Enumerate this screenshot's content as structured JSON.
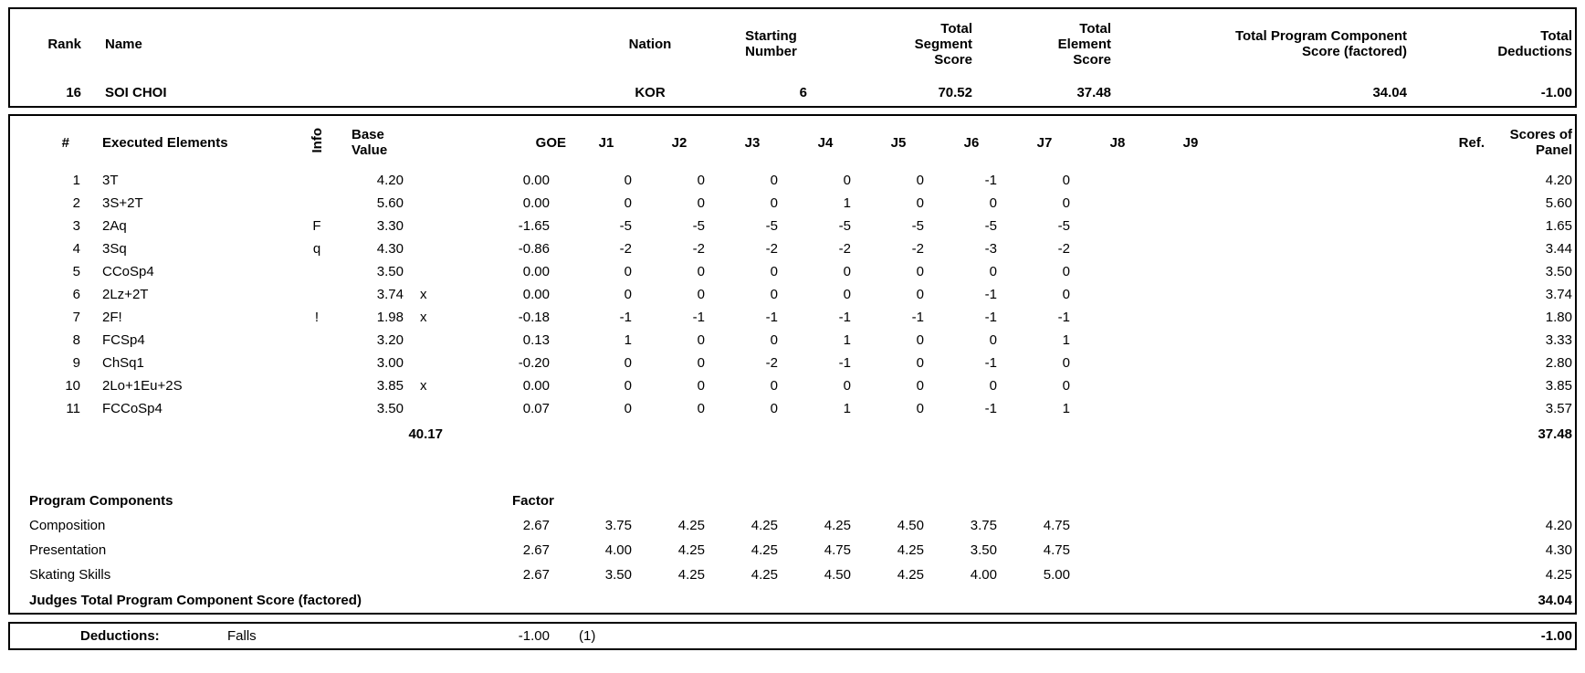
{
  "title_row": {
    "labels": {
      "rank": "Rank",
      "name": "Name",
      "nation": "Nation",
      "starting_number": "Starting\nNumber",
      "total_segment_score": "Total\nSegment\nScore",
      "total_element_score": "Total\nElement\nScore",
      "total_program_component_score": "Total Program Component\nScore (factored)",
      "total_deductions": "Total\nDeductions"
    },
    "values": {
      "rank": "16",
      "name": "SOI CHOI",
      "nation": "KOR",
      "starting_number": "6",
      "total_segment_score": "70.52",
      "total_element_score": "37.48",
      "total_program_component_score": "34.04",
      "total_deductions": "-1.00"
    }
  },
  "elements_table": {
    "columns": {
      "num": "#",
      "executed_elements": "Executed Elements",
      "info": "Info",
      "base_value": "Base\nValue",
      "goe": "GOE",
      "judges": [
        "J1",
        "J2",
        "J3",
        "J4",
        "J5",
        "J6",
        "J7",
        "J8",
        "J9"
      ],
      "ref": "Ref.",
      "scores_of_panel": "Scores of\nPanel"
    },
    "rows": [
      {
        "num": "1",
        "element": "3T",
        "info": "",
        "base_value": "4.20",
        "credit": "",
        "goe": "0.00",
        "judges": [
          "0",
          "0",
          "0",
          "0",
          "0",
          "-1",
          "0",
          "",
          ""
        ],
        "ref": "",
        "panel_score": "4.20"
      },
      {
        "num": "2",
        "element": "3S+2T",
        "info": "",
        "base_value": "5.60",
        "credit": "",
        "goe": "0.00",
        "judges": [
          "0",
          "0",
          "0",
          "1",
          "0",
          "0",
          "0",
          "",
          ""
        ],
        "ref": "",
        "panel_score": "5.60"
      },
      {
        "num": "3",
        "element": "2Aq",
        "info": "F",
        "base_value": "3.30",
        "credit": "",
        "goe": "-1.65",
        "judges": [
          "-5",
          "-5",
          "-5",
          "-5",
          "-5",
          "-5",
          "-5",
          "",
          ""
        ],
        "ref": "",
        "panel_score": "1.65"
      },
      {
        "num": "4",
        "element": "3Sq",
        "info": "q",
        "base_value": "4.30",
        "credit": "",
        "goe": "-0.86",
        "judges": [
          "-2",
          "-2",
          "-2",
          "-2",
          "-2",
          "-3",
          "-2",
          "",
          ""
        ],
        "ref": "",
        "panel_score": "3.44"
      },
      {
        "num": "5",
        "element": "CCoSp4",
        "info": "",
        "base_value": "3.50",
        "credit": "",
        "goe": "0.00",
        "judges": [
          "0",
          "0",
          "0",
          "0",
          "0",
          "0",
          "0",
          "",
          ""
        ],
        "ref": "",
        "panel_score": "3.50"
      },
      {
        "num": "6",
        "element": "2Lz+2T",
        "info": "",
        "base_value": "3.74",
        "credit": "x",
        "goe": "0.00",
        "judges": [
          "0",
          "0",
          "0",
          "0",
          "0",
          "-1",
          "0",
          "",
          ""
        ],
        "ref": "",
        "panel_score": "3.74"
      },
      {
        "num": "7",
        "element": "2F!",
        "info": "!",
        "base_value": "1.98",
        "credit": "x",
        "goe": "-0.18",
        "judges": [
          "-1",
          "-1",
          "-1",
          "-1",
          "-1",
          "-1",
          "-1",
          "",
          ""
        ],
        "ref": "",
        "panel_score": "1.80"
      },
      {
        "num": "8",
        "element": "FCSp4",
        "info": "",
        "base_value": "3.20",
        "credit": "",
        "goe": "0.13",
        "judges": [
          "1",
          "0",
          "0",
          "1",
          "0",
          "0",
          "1",
          "",
          ""
        ],
        "ref": "",
        "panel_score": "3.33"
      },
      {
        "num": "9",
        "element": "ChSq1",
        "info": "",
        "base_value": "3.00",
        "credit": "",
        "goe": "-0.20",
        "judges": [
          "0",
          "0",
          "-2",
          "-1",
          "0",
          "-1",
          "0",
          "",
          ""
        ],
        "ref": "",
        "panel_score": "2.80"
      },
      {
        "num": "10",
        "element": "2Lo+1Eu+2S",
        "info": "",
        "base_value": "3.85",
        "credit": "x",
        "goe": "0.00",
        "judges": [
          "0",
          "0",
          "0",
          "0",
          "0",
          "0",
          "0",
          "",
          ""
        ],
        "ref": "",
        "panel_score": "3.85"
      },
      {
        "num": "11",
        "element": "FCCoSp4",
        "info": "",
        "base_value": "3.50",
        "credit": "",
        "goe": "0.07",
        "judges": [
          "0",
          "0",
          "0",
          "1",
          "0",
          "-1",
          "1",
          "",
          ""
        ],
        "ref": "",
        "panel_score": "3.57"
      }
    ],
    "total_base_value": "40.17",
    "total_panel_score": "37.48"
  },
  "program_components": {
    "title": "Program Components",
    "factor_label": "Factor",
    "rows": [
      {
        "name": "Composition",
        "factor": "2.67",
        "judges": [
          "3.75",
          "4.25",
          "4.25",
          "4.25",
          "4.50",
          "3.75",
          "4.75",
          "",
          ""
        ],
        "panel_score": "4.20"
      },
      {
        "name": "Presentation",
        "factor": "2.67",
        "judges": [
          "4.00",
          "4.25",
          "4.25",
          "4.75",
          "4.25",
          "3.50",
          "4.75",
          "",
          ""
        ],
        "panel_score": "4.30"
      },
      {
        "name": "Skating Skills",
        "factor": "2.67",
        "judges": [
          "3.50",
          "4.25",
          "4.25",
          "4.50",
          "4.25",
          "4.00",
          "5.00",
          "",
          ""
        ],
        "panel_score": "4.25"
      }
    ],
    "total_label": "Judges Total Program Component Score (factored)",
    "total_value": "34.04"
  },
  "deductions_row": {
    "label": "Deductions:",
    "name": "Falls",
    "value": "-1.00",
    "count": "(1)",
    "total": "-1.00"
  }
}
